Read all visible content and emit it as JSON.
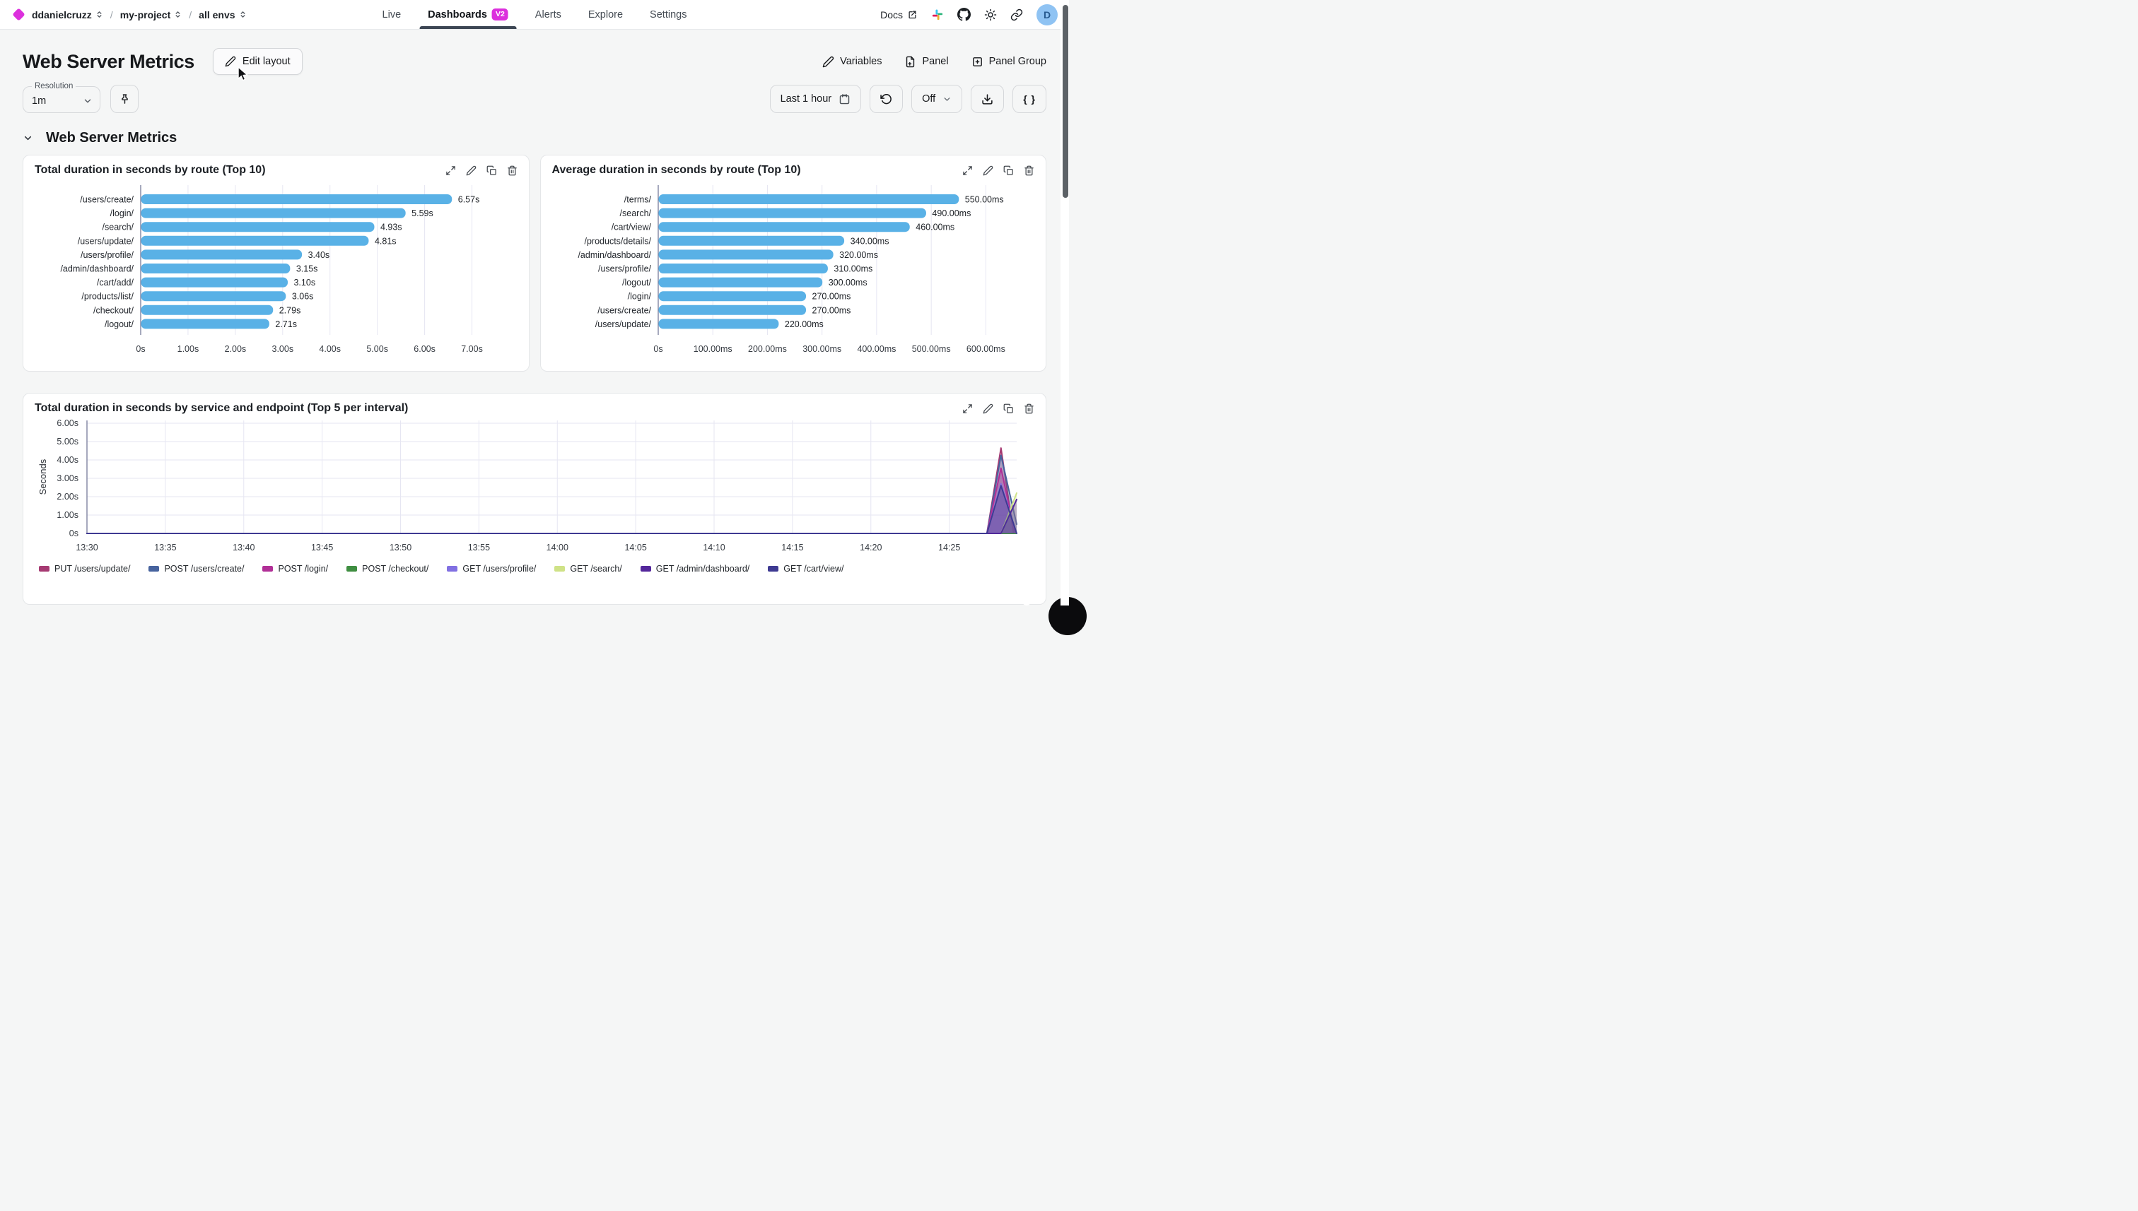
{
  "nav": {
    "breadcrumb": [
      {
        "label": "ddanielcruzz"
      },
      {
        "label": "my-project"
      },
      {
        "label": "all envs"
      }
    ],
    "tabs": [
      {
        "label": "Live"
      },
      {
        "label": "Dashboards",
        "badge": "V2",
        "active": true
      },
      {
        "label": "Alerts"
      },
      {
        "label": "Explore"
      },
      {
        "label": "Settings"
      }
    ],
    "docs": "Docs",
    "avatar": "D"
  },
  "header": {
    "title": "Web Server Metrics",
    "edit_layout": "Edit layout",
    "variables": "Variables",
    "panel": "Panel",
    "panel_group": "Panel Group"
  },
  "controls": {
    "resolution_label": "Resolution",
    "resolution_value": "1m",
    "time_range": "Last 1 hour",
    "auto_refresh": "Off",
    "braces": "{ }"
  },
  "section_title": "Web Server Metrics",
  "panels": [
    {
      "title": "Total duration in seconds by route (Top 10)"
    },
    {
      "title": "Average duration in seconds by route (Top 10)"
    },
    {
      "title": "Total duration in seconds by service and endpoint (Top 5 per interval)"
    }
  ],
  "colors": {
    "accent": "#dc30dd",
    "bar": "#59b1e6",
    "tab_underline": "#3d4654",
    "avatar_bg": "#8fc3f3"
  },
  "chart_data": [
    {
      "type": "bar",
      "orientation": "horizontal",
      "title": "Total duration in seconds by route (Top 10)",
      "categories": [
        "/users/create/",
        "/login/",
        "/search/",
        "/users/update/",
        "/users/profile/",
        "/admin/dashboard/",
        "/cart/add/",
        "/products/list/",
        "/checkout/",
        "/logout/"
      ],
      "values": [
        6.57,
        5.59,
        4.93,
        4.81,
        3.4,
        3.15,
        3.1,
        3.06,
        2.79,
        2.71
      ],
      "value_labels": [
        "6.57s",
        "5.59s",
        "4.93s",
        "4.81s",
        "3.40s",
        "3.15s",
        "3.10s",
        "3.06s",
        "2.79s",
        "2.71s"
      ],
      "xticks": [
        "0s",
        "1.00s",
        "2.00s",
        "3.00s",
        "4.00s",
        "5.00s",
        "6.00s",
        "7.00s"
      ],
      "xtick_values": [
        0,
        1,
        2,
        3,
        4,
        5,
        6,
        7
      ],
      "xmax": 7.5,
      "bar_color": "#59b1e6"
    },
    {
      "type": "bar",
      "orientation": "horizontal",
      "title": "Average duration in seconds by route (Top 10)",
      "categories": [
        "/terms/",
        "/search/",
        "/cart/view/",
        "/products/details/",
        "/admin/dashboard/",
        "/users/profile/",
        "/logout/",
        "/login/",
        "/users/create/",
        "/users/update/"
      ],
      "values": [
        550,
        490,
        460,
        340,
        320,
        310,
        300,
        270,
        270,
        220
      ],
      "value_labels": [
        "550.00ms",
        "490.00ms",
        "460.00ms",
        "340.00ms",
        "320.00ms",
        "310.00ms",
        "300.00ms",
        "270.00ms",
        "270.00ms",
        "220.00ms"
      ],
      "xticks": [
        "0s",
        "100.00ms",
        "200.00ms",
        "300.00ms",
        "400.00ms",
        "500.00ms",
        "600.00ms"
      ],
      "xtick_values": [
        0,
        100,
        200,
        300,
        400,
        500,
        600
      ],
      "xmax": 650,
      "bar_color": "#59b1e6"
    },
    {
      "type": "line",
      "title": "Total duration in seconds by service and endpoint (Top 5 per interval)",
      "ylabel": "Seconds",
      "yticks": [
        "0s",
        "1.00s",
        "2.00s",
        "3.00s",
        "4.00s",
        "5.00s",
        "6.00s"
      ],
      "ytick_values": [
        0,
        1,
        2,
        3,
        4,
        5,
        6
      ],
      "ylim": [
        0,
        6.15
      ],
      "xticks": [
        "13:30",
        "13:35",
        "13:40",
        "13:45",
        "13:50",
        "13:55",
        "14:00",
        "14:05",
        "14:10",
        "14:15",
        "14:20",
        "14:25"
      ],
      "xtick_minutes": [
        0,
        5,
        10,
        15,
        20,
        25,
        30,
        35,
        40,
        45,
        50,
        55
      ],
      "xlim_minutes": [
        0,
        59.3
      ],
      "fill_opacity": 0.33,
      "series": [
        {
          "name": "PUT /users/update/",
          "color": "#a63a72",
          "points": [
            [
              0,
              0
            ],
            [
              57.4,
              0
            ],
            [
              58.3,
              4.65
            ],
            [
              59.1,
              0
            ]
          ]
        },
        {
          "name": "POST /users/create/",
          "color": "#47639e",
          "points": [
            [
              0,
              0
            ],
            [
              57.4,
              0
            ],
            [
              58.3,
              4.25
            ],
            [
              59.3,
              0.5
            ]
          ]
        },
        {
          "name": "POST /login/",
          "color": "#b12f97",
          "points": [
            [
              0,
              0
            ],
            [
              57.4,
              0
            ],
            [
              58.3,
              3.55
            ],
            [
              59.2,
              0
            ]
          ]
        },
        {
          "name": "POST /checkout/",
          "color": "#3f8e41",
          "points": [
            [
              0,
              0
            ],
            [
              59.3,
              0
            ]
          ]
        },
        {
          "name": "GET /users/profile/",
          "color": "#8170e2",
          "points": [
            [
              0,
              0
            ],
            [
              57.4,
              0
            ],
            [
              58.3,
              2.7
            ],
            [
              59.3,
              0
            ]
          ]
        },
        {
          "name": "GET /search/",
          "color": "#cfe287",
          "points": [
            [
              0,
              0
            ],
            [
              58.3,
              0
            ],
            [
              59.3,
              2.2
            ]
          ]
        },
        {
          "name": "GET /admin/dashboard/",
          "color": "#54279b",
          "points": [
            [
              0,
              0
            ],
            [
              58.3,
              0
            ],
            [
              59.3,
              1.85
            ]
          ]
        },
        {
          "name": "GET /cart/view/",
          "color": "#3e3a92",
          "points": [
            [
              0,
              0
            ],
            [
              57.4,
              0
            ],
            [
              58.3,
              2.6
            ],
            [
              59.3,
              0
            ]
          ]
        }
      ]
    }
  ]
}
